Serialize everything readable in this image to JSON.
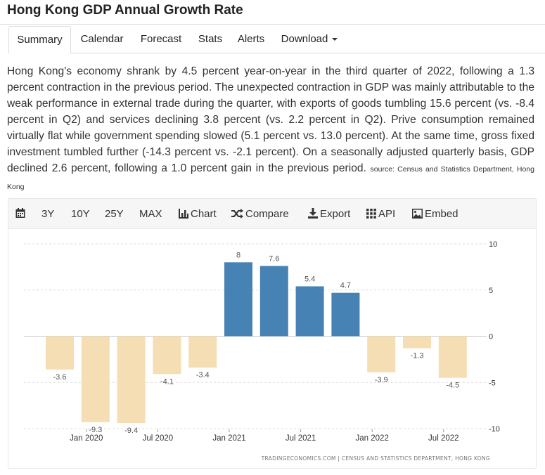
{
  "page": {
    "title": "Hong Kong GDP Annual Growth Rate"
  },
  "tabs": [
    {
      "label": "Summary",
      "active": true
    },
    {
      "label": "Calendar",
      "active": false
    },
    {
      "label": "Forecast",
      "active": false
    },
    {
      "label": "Stats",
      "active": false
    },
    {
      "label": "Alerts",
      "active": false
    },
    {
      "label": "Download",
      "active": false
    }
  ],
  "summary": {
    "text": "Hong Kong's economy shrank by 4.5 percent year-on-year in the third quarter of 2022, following a 1.3 percent contraction in the previous period. The unexpected contraction in GDP was mainly attributable to the weak performance in external trade during the quarter, with exports of goods tumbling 15.6 percent (vs. -8.4 percent in Q2) and services declining 3.8 percent (vs. 2.2 percent in Q2). Prive consumption remained virtually flat while government spending slowed (5.1 percent vs. 13.0 percent). At the same time, gross fixed investment tumbled further (-14.3 percent vs. -2.1 percent). On a seasonally adjusted quarterly basis, GDP declined 2.6 percent, following a 1.0 percent gain in the previous period.",
    "source": "source: Census and Statistics Department, Hong Kong"
  },
  "toolbar": {
    "icons": {
      "calendar": "calendar-icon",
      "chart": "bar-chart-icon",
      "compare": "shuffle-icon",
      "export": "download-icon",
      "api": "grid-icon",
      "embed": "image-icon"
    },
    "range_3y": "3Y",
    "range_10y": "10Y",
    "range_25y": "25Y",
    "range_max": "MAX",
    "chart": "Chart",
    "compare": "Compare",
    "export": "Export",
    "api": "API",
    "embed": "Embed"
  },
  "chart_data": {
    "type": "bar",
    "categories": [
      "2019 Q4",
      "2020 Q1",
      "2020 Q2",
      "2020 Q3",
      "2020 Q4",
      "2021 Q1",
      "2021 Q2",
      "2021 Q3",
      "2021 Q4",
      "2022 Q1",
      "2022 Q2",
      "2022 Q3"
    ],
    "values": [
      -3.6,
      -9.3,
      -9.4,
      -4.1,
      -3.4,
      8,
      7.6,
      5.4,
      4.7,
      -3.9,
      -1.3,
      -4.5
    ],
    "data_labels": [
      "-3.6",
      "-9.3",
      "-9.4",
      "-4.1",
      "-3.4",
      "8",
      "7.6",
      "5.4",
      "4.7",
      "-3.9",
      "-1.3",
      "-4.5"
    ],
    "x_tick_labels": [
      "Jan 2020",
      "Jul 2020",
      "Jan 2021",
      "Jul 2021",
      "Jan 2022",
      "Jul 2022"
    ],
    "y_ticks": [
      10,
      5,
      0,
      -5,
      -10
    ],
    "ylim": [
      -10,
      10
    ],
    "colors": {
      "positive": "#4682b4",
      "negative": "#f5deb3",
      "label": "#555555",
      "grid": "#dddddd",
      "axis": "#333333"
    },
    "grid": true,
    "credit": "TRADINGECONOMICS.COM  |  CENSUS AND STATISTICS DEPARTMENT, HONG KONG"
  }
}
